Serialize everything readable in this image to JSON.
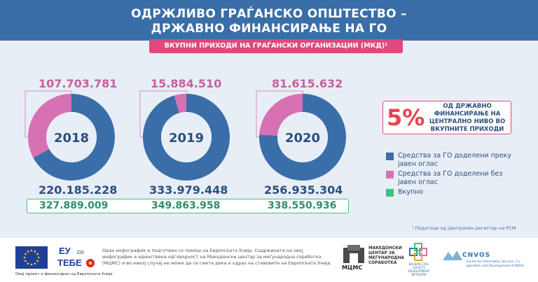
{
  "header": {
    "title_line1": "ОДРЖЛИВО ГРАЃАНСКО ОПШТЕСТВО –",
    "title_line2": "ДРЖАВНО ФИНАНСИРАЊЕ НА ГО",
    "subtitle": "ВКУПНИ ПРИХОДИ НА ГРАЃАНСКИ ОРГАНИЗАЦИИ (МКД)¹"
  },
  "colors": {
    "public_call": "#3a6ea8",
    "no_public_call": "#d870b4",
    "total": "#3fbf82",
    "accent": "#e8424f"
  },
  "chart_data": {
    "type": "pie",
    "categories": [
      "2018",
      "2019",
      "2020"
    ],
    "series": [
      {
        "name": "Средства за ГО доделени преку јавен оглас",
        "values": [
          220185228,
          333979448,
          256935304
        ]
      },
      {
        "name": "Средства за ГО доделени без јавен оглас",
        "values": [
          107703781,
          15884510,
          81615632
        ]
      },
      {
        "name": "Вкупно",
        "values": [
          327889009,
          349863958,
          338550936
        ]
      }
    ],
    "labels": {
      "public_call": [
        "220.185.228",
        "333.979.448",
        "256.935.304"
      ],
      "no_public_call": [
        "107.703.781",
        "15.884.510",
        "81.615.632"
      ],
      "total": [
        "327.889.009",
        "349.863.958",
        "338.550.936"
      ]
    }
  },
  "callout": {
    "percent": "5%",
    "text": "ОД ДРЖАВНО ФИНАНСИРАЊЕ НА ЦЕНТРАЛНО НИВО ВО ВКУПНИТЕ ПРИХОДИ"
  },
  "legend": {
    "public_call": "Средства за ГО доделени преку јавен оглас",
    "no_public_call": "Средства за ГО доделени без јавен оглас",
    "total": "Вкупно"
  },
  "footnote": "¹ Податоци од Централен регистар на РСМ",
  "footer": {
    "eu_caption": "Овој проект е финансиран од Европската Унија",
    "eutebe_line1": "ЕУ",
    "eutebe_line2": "со",
    "eutebe_line3": "ТЕБЕ",
    "disclaimer": "Оваа инфографик е подготвен со помош на Европската Унија. Содржината на овој инфографик е единствена одговорност на Македонски центар за меѓународна соработка (МЦМС) и во никој случај не може да се смета дека е одраз на ставовите на Европската Унија.",
    "mcms_text": "МАКЕДОНСКИ ЦЕНТАР ЗА МЕЃУНАРОДНА СОРАБОТКА",
    "mcms_word": "МЦМС",
    "bcsdn_text": "BALKAN CIVIL SOCIETY DEVELOPMENT NETWORK",
    "cnvos_word": "CNVOS",
    "cnvos_text": "Centre for Information Service, Co-operation and Development of NGOs"
  }
}
